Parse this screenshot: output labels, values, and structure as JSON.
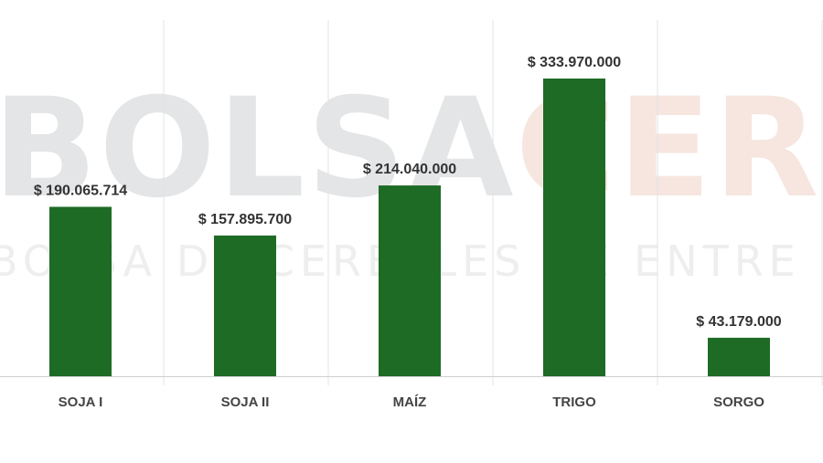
{
  "watermark": {
    "part1": "BOLSA",
    "part2": "CER",
    "subtitle": "BOLSA DE CEREALES DE ENTRE RÍOS",
    "color1": "#e3e5e6",
    "color2": "#f6e6df",
    "subtitle_color": "#eeeeee"
  },
  "colors": {
    "bar": "#1e6b26",
    "value_label": "#333333",
    "category_label": "#444444",
    "grid": "#e3e3e3",
    "axis": "#cfcfcf"
  },
  "chart_data": {
    "type": "bar",
    "categories": [
      "SOJA I",
      "SOJA II",
      "MAÍZ",
      "TRIGO",
      "SORGO"
    ],
    "values": [
      190065714,
      157895700,
      214040000,
      333970000,
      43179000
    ],
    "value_labels": [
      "$ 190.065.714",
      "$ 157.895.700",
      "$ 214.040.000",
      "$ 333.970.000",
      "$ 43.179.000"
    ],
    "title": "",
    "xlabel": "",
    "ylabel": "",
    "ylim": [
      0,
      333970000
    ],
    "grid": "vertical separators",
    "legend": "none"
  }
}
